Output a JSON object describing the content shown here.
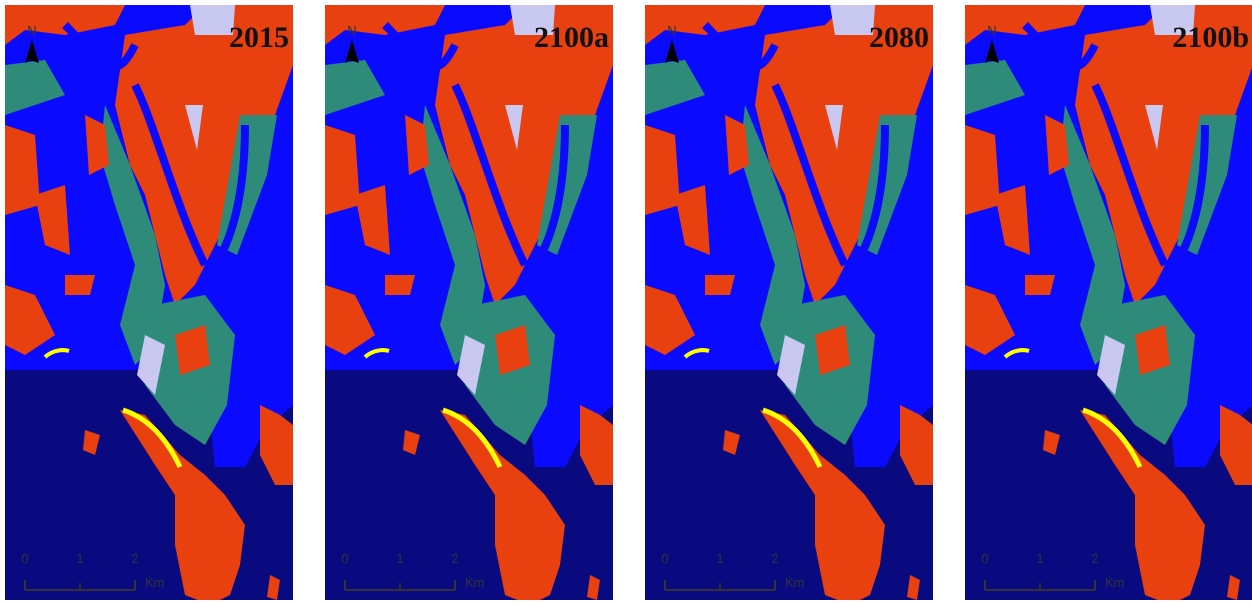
{
  "north": "N",
  "panels": [
    {
      "label": "2015"
    },
    {
      "label": "2100a"
    },
    {
      "label": "2080"
    },
    {
      "label": "2100b"
    }
  ],
  "scale": {
    "ticks": [
      "0",
      "1",
      "2"
    ],
    "unit": "Km"
  }
}
